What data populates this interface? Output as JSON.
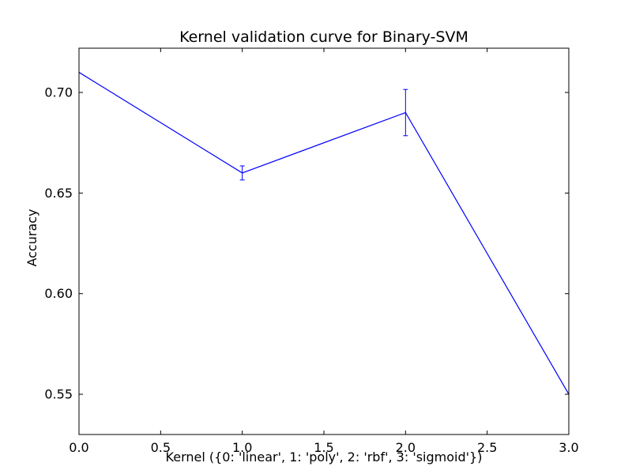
{
  "chart_data": {
    "type": "line",
    "title": "Kernel validation curve for Binary-SVM",
    "xlabel": "Kernel ({0: 'linear', 1: 'poly', 2: 'rbf', 3: 'sigmoid'})",
    "ylabel": "Accuracy",
    "xlim": [
      0.0,
      3.0
    ],
    "ylim": [
      0.53,
      0.722
    ],
    "xticks": [
      0.0,
      0.5,
      1.0,
      1.5,
      2.0,
      2.5,
      3.0
    ],
    "xtick_labels": [
      "0.0",
      "0.5",
      "1.0",
      "1.5",
      "2.0",
      "2.5",
      "3.0"
    ],
    "yticks": [
      0.55,
      0.6,
      0.65,
      0.7
    ],
    "ytick_labels": [
      "0.55",
      "0.60",
      "0.65",
      "0.70"
    ],
    "grid": false,
    "series": [
      {
        "x": [
          0,
          1,
          2,
          3
        ],
        "y": [
          0.71,
          0.66,
          0.69,
          0.55
        ],
        "yerr": [
          0.0,
          0.0035,
          0.0115,
          0.0
        ],
        "color": "#0000ff"
      }
    ]
  }
}
